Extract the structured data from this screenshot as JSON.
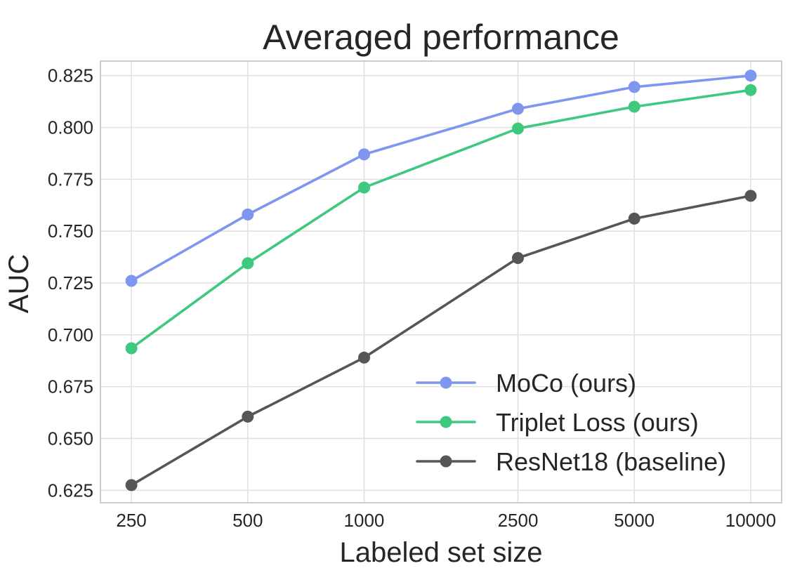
{
  "chart_data": {
    "type": "line",
    "title": "Averaged performance",
    "xlabel": "Labeled set size",
    "ylabel": "AUC",
    "x": [
      "250",
      "500",
      "1000",
      "2500",
      "5000",
      "10000"
    ],
    "x_scale": "log",
    "yticks": [
      "0.625",
      "0.650",
      "0.675",
      "0.700",
      "0.725",
      "0.750",
      "0.775",
      "0.800",
      "0.825"
    ],
    "ylim": [
      0.619,
      0.832
    ],
    "grid": true,
    "legend_position": "lower-right",
    "series": [
      {
        "name": "MoCo (ours)",
        "color": "#7f96ef",
        "values": [
          0.726,
          0.758,
          0.787,
          0.809,
          0.8195,
          0.825
        ]
      },
      {
        "name": "Triplet Loss (ours)",
        "color": "#3ec97f",
        "values": [
          0.6935,
          0.7345,
          0.771,
          0.7995,
          0.81,
          0.818
        ]
      },
      {
        "name": "ResNet18 (baseline)",
        "color": "#565656",
        "values": [
          0.6275,
          0.6605,
          0.689,
          0.737,
          0.756,
          0.767
        ]
      }
    ]
  }
}
